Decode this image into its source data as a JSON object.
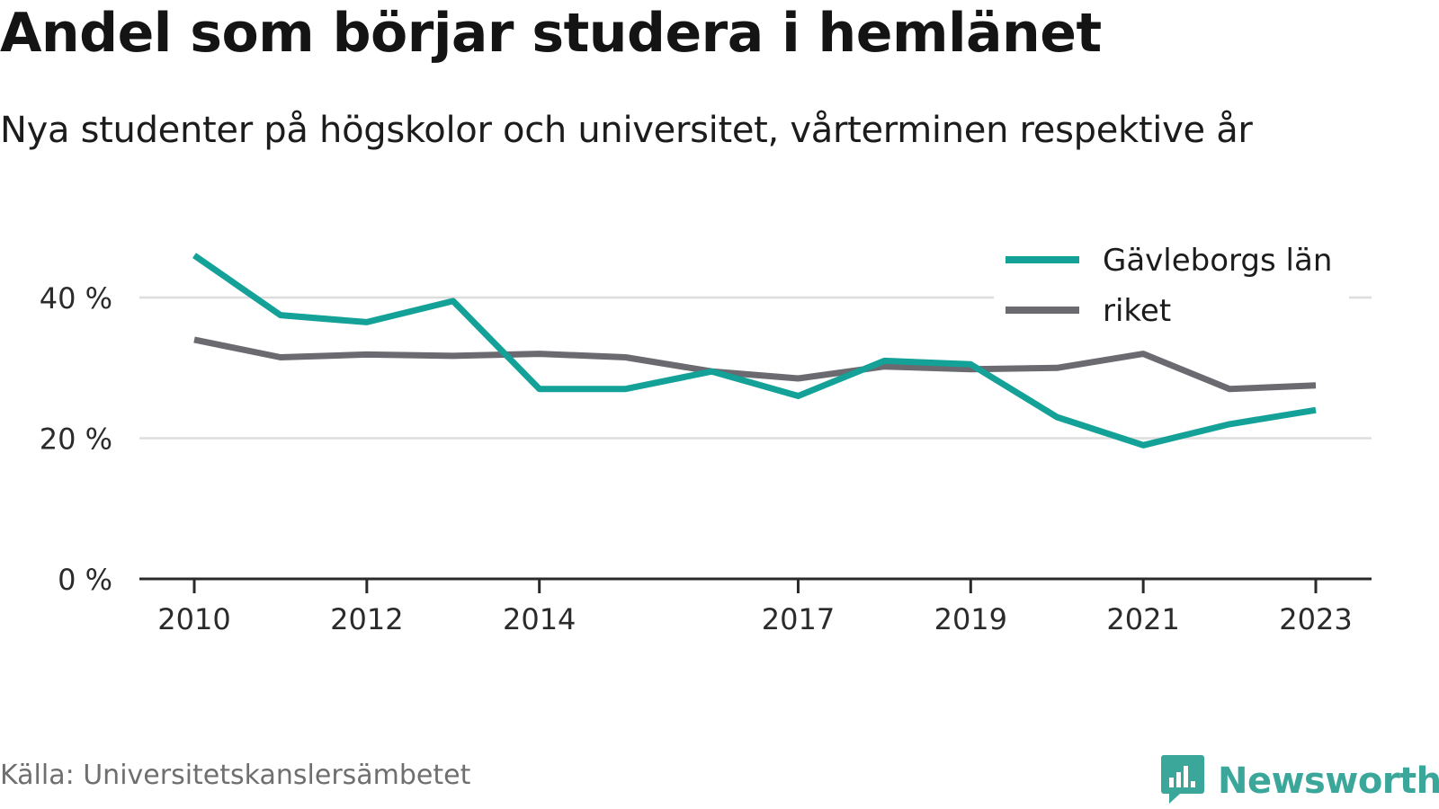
{
  "title": "Andel som börjar studera i hemlänet",
  "subtitle": "Nya studenter på högskolor och universitet, vårterminen respektive år",
  "source": "Källa: Universitetskanslersämbetet",
  "brand": {
    "name": "Newsworthy",
    "icon": "newsworthy-logo-icon",
    "color": "#3aa79a"
  },
  "chart_data": {
    "type": "line",
    "x": [
      2010,
      2011,
      2012,
      2013,
      2014,
      2015,
      2016,
      2017,
      2018,
      2019,
      2020,
      2021,
      2022,
      2023
    ],
    "x_ticks": [
      "2010",
      "2012",
      "2014",
      "2017",
      "2019",
      "2021",
      "2023"
    ],
    "y_ticks": [
      "0 %",
      "20 %",
      "40 %"
    ],
    "y_tick_values": [
      0,
      20,
      40
    ],
    "ylim": [
      0,
      48
    ],
    "grid": true,
    "legend_position": "top-right",
    "series": [
      {
        "name": "Gävleborgs län",
        "color": "#13a198",
        "values": [
          46.0,
          37.5,
          36.5,
          39.5,
          27.0,
          27.0,
          29.5,
          26.0,
          31.0,
          30.5,
          23.0,
          19.0,
          22.0,
          24.0
        ]
      },
      {
        "name": "riket",
        "color": "#6b6a70",
        "values": [
          34.0,
          31.5,
          31.9,
          31.7,
          32.0,
          31.5,
          29.5,
          28.5,
          30.2,
          29.8,
          30.0,
          32.0,
          27.0,
          27.5
        ]
      }
    ]
  }
}
